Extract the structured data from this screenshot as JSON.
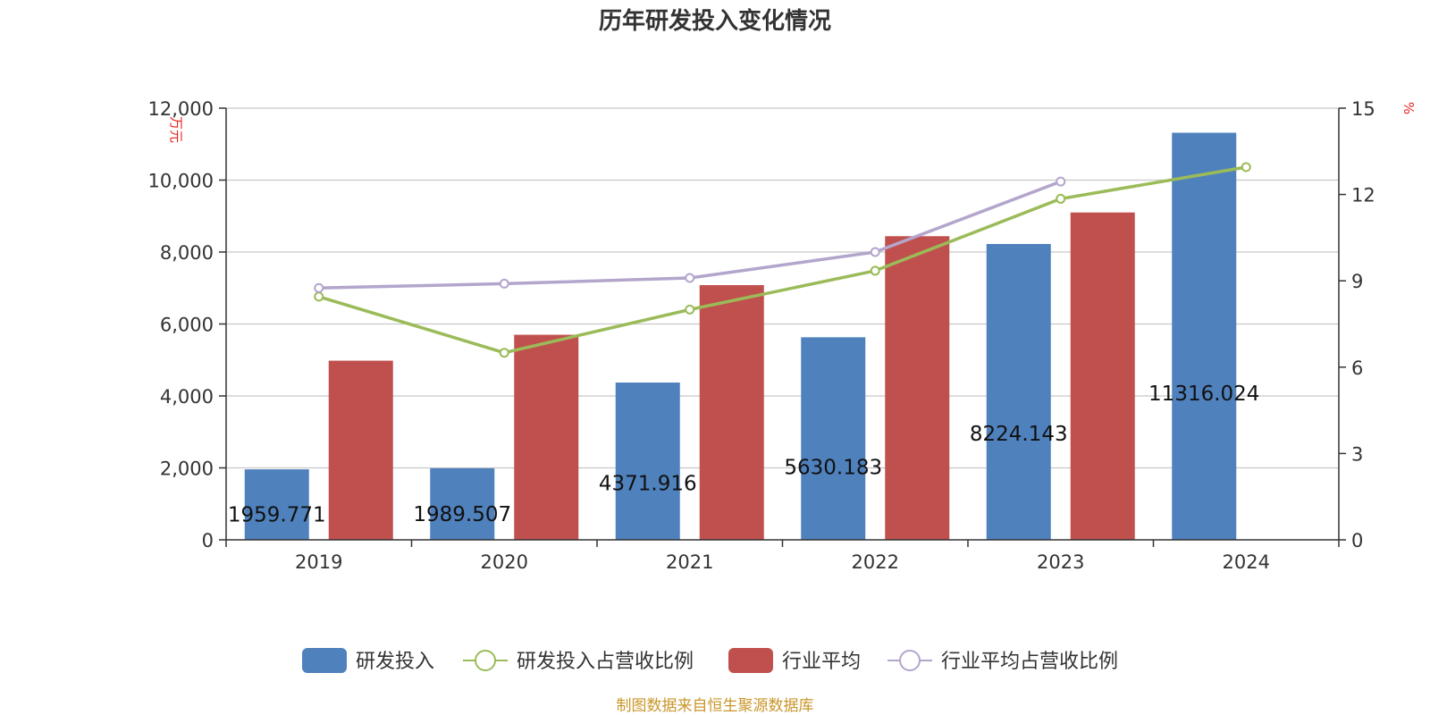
{
  "chart_data": {
    "type": "bar",
    "title": "历年研发投入变化情况",
    "categories": [
      "2019",
      "2020",
      "2021",
      "2022",
      "2023",
      "2024"
    ],
    "y_left": {
      "label": "万元",
      "ylim": [
        0,
        12000
      ],
      "ticks": [
        "0",
        "2,000",
        "4,000",
        "6,000",
        "8,000",
        "10,000",
        "12,000"
      ],
      "tick_values": [
        0,
        2000,
        4000,
        6000,
        8000,
        10000,
        12000
      ]
    },
    "y_right": {
      "label": "%",
      "ylim": [
        0,
        15
      ],
      "ticks": [
        "0",
        "3",
        "6",
        "9",
        "12",
        "15"
      ],
      "tick_values": [
        0,
        3,
        6,
        9,
        12,
        15
      ]
    },
    "series": [
      {
        "name": "研发投入",
        "kind": "bar",
        "axis": "left",
        "color": "#4f81bd",
        "values": [
          1959.771,
          1989.507,
          4371.916,
          5630.183,
          8224.143,
          11316.024
        ],
        "labels": [
          "1959.771",
          "1989.507",
          "4371.916",
          "5630.183",
          "8224.143",
          "11316.024"
        ]
      },
      {
        "name": "行业平均",
        "kind": "bar",
        "axis": "left",
        "color": "#c0504d",
        "values": [
          4980,
          5700,
          7080,
          8440,
          9100,
          null
        ]
      },
      {
        "name": "研发投入占营收比例",
        "kind": "line",
        "axis": "right",
        "color": "#9bbb59",
        "values": [
          8.45,
          6.5,
          8.0,
          9.35,
          11.85,
          12.95
        ]
      },
      {
        "name": "行业平均占营收比例",
        "kind": "line",
        "axis": "right",
        "color": "#b3a5cc",
        "values": [
          8.75,
          8.9,
          9.1,
          10.0,
          12.45,
          null
        ]
      }
    ],
    "legend_position": "bottom",
    "grid": true
  },
  "footer": {
    "source": "制图数据来自恒生聚源数据库"
  }
}
